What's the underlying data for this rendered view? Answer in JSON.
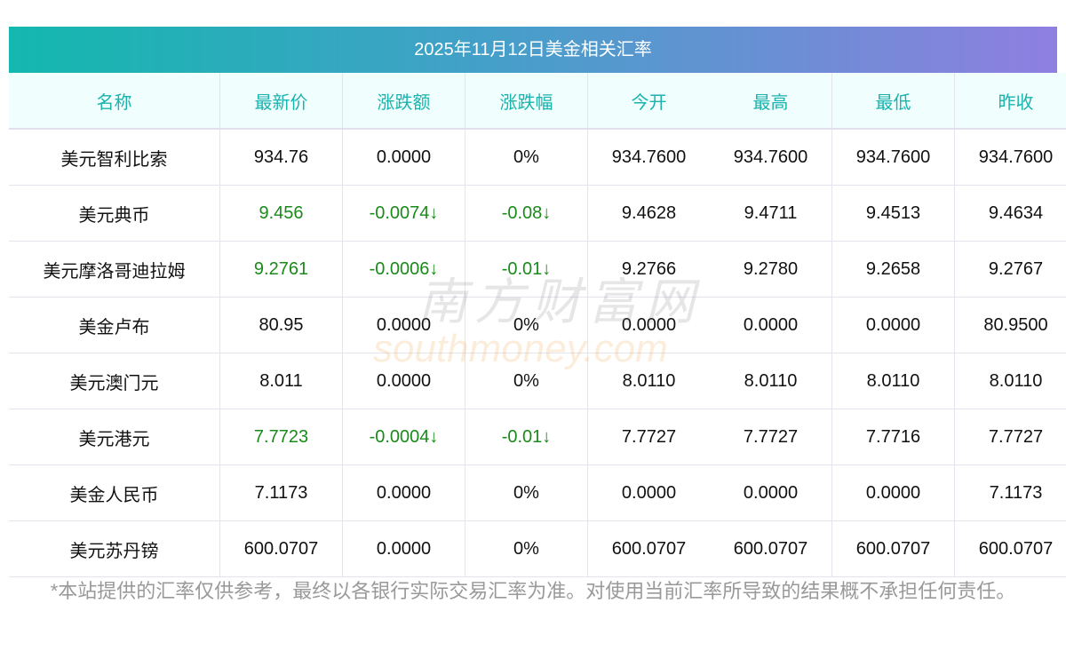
{
  "title": "2025年11月12日美金相关汇率",
  "headers": [
    "名称",
    "最新价",
    "涨跌额",
    "涨跌幅",
    "今开",
    "最高",
    "最低",
    "昨收"
  ],
  "rows": [
    {
      "name": "美元智利比索",
      "last": "934.76",
      "chg": "0.0000",
      "pct": "0%",
      "open": "934.7600",
      "high": "934.7600",
      "low": "934.7600",
      "prev": "934.7600",
      "down": false
    },
    {
      "name": "美元典币",
      "last": "9.456",
      "chg": "-0.0074↓",
      "pct": "-0.08↓",
      "open": "9.4628",
      "high": "9.4711",
      "low": "9.4513",
      "prev": "9.4634",
      "down": true
    },
    {
      "name": "美元摩洛哥迪拉姆",
      "last": "9.2761",
      "chg": "-0.0006↓",
      "pct": "-0.01↓",
      "open": "9.2766",
      "high": "9.2780",
      "low": "9.2658",
      "prev": "9.2767",
      "down": true
    },
    {
      "name": "美金卢布",
      "last": "80.95",
      "chg": "0.0000",
      "pct": "0%",
      "open": "0.0000",
      "high": "0.0000",
      "low": "0.0000",
      "prev": "80.9500",
      "down": false
    },
    {
      "name": "美元澳门元",
      "last": "8.011",
      "chg": "0.0000",
      "pct": "0%",
      "open": "8.0110",
      "high": "8.0110",
      "low": "8.0110",
      "prev": "8.0110",
      "down": false
    },
    {
      "name": "美元港元",
      "last": "7.7723",
      "chg": "-0.0004↓",
      "pct": "-0.01↓",
      "open": "7.7727",
      "high": "7.7727",
      "low": "7.7716",
      "prev": "7.7727",
      "down": true
    },
    {
      "name": "美金人民币",
      "last": "7.1173",
      "chg": "0.0000",
      "pct": "0%",
      "open": "0.0000",
      "high": "0.0000",
      "low": "0.0000",
      "prev": "7.1173",
      "down": false
    },
    {
      "name": "美元苏丹镑",
      "last": "600.0707",
      "chg": "0.0000",
      "pct": "0%",
      "open": "600.0707",
      "high": "600.0707",
      "low": "600.0707",
      "prev": "600.0707",
      "down": false
    }
  ],
  "watermark": {
    "cn": "南方财富网",
    "en": "southmoney.com"
  },
  "footer": "*本站提供的汇率仅供参考，最终以各银行实际交易汇率为准。对使用当前汇率所导致的结果概不承担任何责任。",
  "colors": {
    "down": "#1a8a1a",
    "header_text": "#1ab3ad"
  }
}
